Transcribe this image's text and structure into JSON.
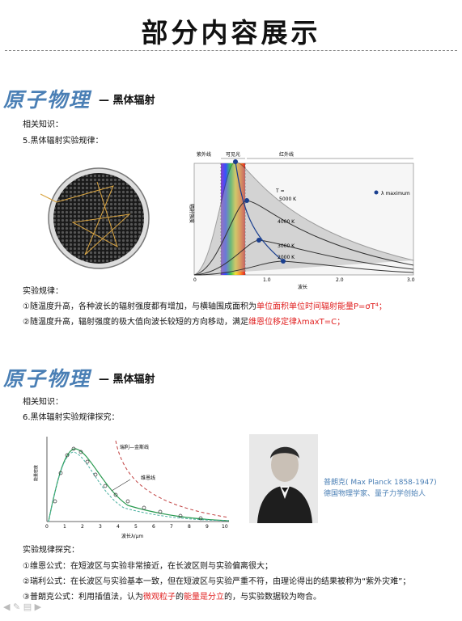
{
  "page_title": "部分内容展示",
  "section1": {
    "brand": "原子物理",
    "subtitle": "— 黑体辐射",
    "knowledge_label": "相关知识：",
    "law_heading": "5.黑体辐射实验规律：",
    "chart": {
      "y_axis_label": "辐射强度",
      "x_axis_label": "波长",
      "region_uv": "紫外线",
      "region_visible": "可见光",
      "region_ir": "红外线",
      "legend": "λ maximum",
      "temp_header": "T =",
      "temps": [
        "5000 K",
        "4000 K",
        "3000 K",
        "2000 K"
      ],
      "x_ticks": [
        "0",
        "1.0",
        "2.0",
        "3.0"
      ]
    },
    "rules_label": "实验规律：",
    "rule1_prefix": "①随温度升高，各种波长的辐射强度都有增加，与横轴围成面积为",
    "rule1_red": "单位面积单位时间辐射能量",
    "rule1_formula": "P=σT⁴；",
    "rule2_prefix": "②随温度升高，辐射强度的极大值向波长较短的方向移动，满足",
    "rule2_red": "维恩位移定律",
    "rule2_formula": "λmaxT=C；"
  },
  "section2": {
    "brand": "原子物理",
    "subtitle": "— 黑体辐射",
    "knowledge_label": "相关知识：",
    "law_heading": "6.黑体辐射实验规律探究：",
    "chart": {
      "y_axis_label": "能量密度",
      "x_axis_label": "波长λ/μm",
      "rayleigh_label": "瑞利—金斯线",
      "wien_label": "维恩线",
      "x_ticks": [
        "0",
        "1",
        "2",
        "3",
        "4",
        "5",
        "6",
        "7",
        "8",
        "9",
        "10"
      ]
    },
    "caption_line1": "普朗克( Max Planck 1858-1947)",
    "caption_line2": "德国物理学家、量子力学创始人",
    "explore_label": "实验规律探究：",
    "item1": "①维恩公式：在短波区与实验非常接近，在长波区则与实验偏离很大；",
    "item2": "②瑞利公式：在长波区与实验基本一致，但在短波区与实验严重不符，由理论得出的结果被称为“紫外灾难”；",
    "item3_prefix": "③普朗克公式：利用插值法，认为",
    "item3_red1": "微观粒子",
    "item3_mid": "的",
    "item3_red2": "能量是分立",
    "item3_suffix": "的，与实验数据较为吻合。"
  },
  "colors": {
    "brand": "#4a7fb5",
    "highlight": "#e02020"
  }
}
